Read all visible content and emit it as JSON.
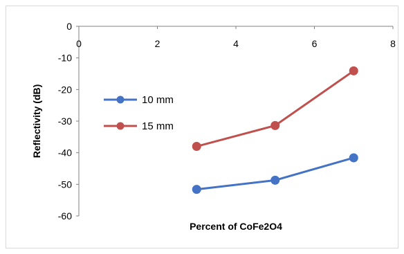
{
  "chart_data": {
    "type": "line",
    "title": "",
    "xlabel": "Percent of CoFe2O4",
    "ylabel": "Reflectivity (dB)",
    "xlim": [
      0,
      8
    ],
    "ylim": [
      -60,
      0
    ],
    "xticks": [
      0,
      2,
      4,
      6,
      8
    ],
    "yticks": [
      0,
      -10,
      -20,
      -30,
      -40,
      -50,
      -60
    ],
    "x_axis_position": "top (at y = 0)",
    "grid": false,
    "legend_position": "left-center",
    "series": [
      {
        "name": "10 mm",
        "color": "#4472c4",
        "x": [
          3,
          5,
          7
        ],
        "y": [
          -51.6,
          -48.7,
          -41.6
        ]
      },
      {
        "name": "15 mm",
        "color": "#c0504d",
        "x": [
          3,
          5,
          7
        ],
        "y": [
          -38.0,
          -31.4,
          -14.1
        ]
      }
    ]
  }
}
